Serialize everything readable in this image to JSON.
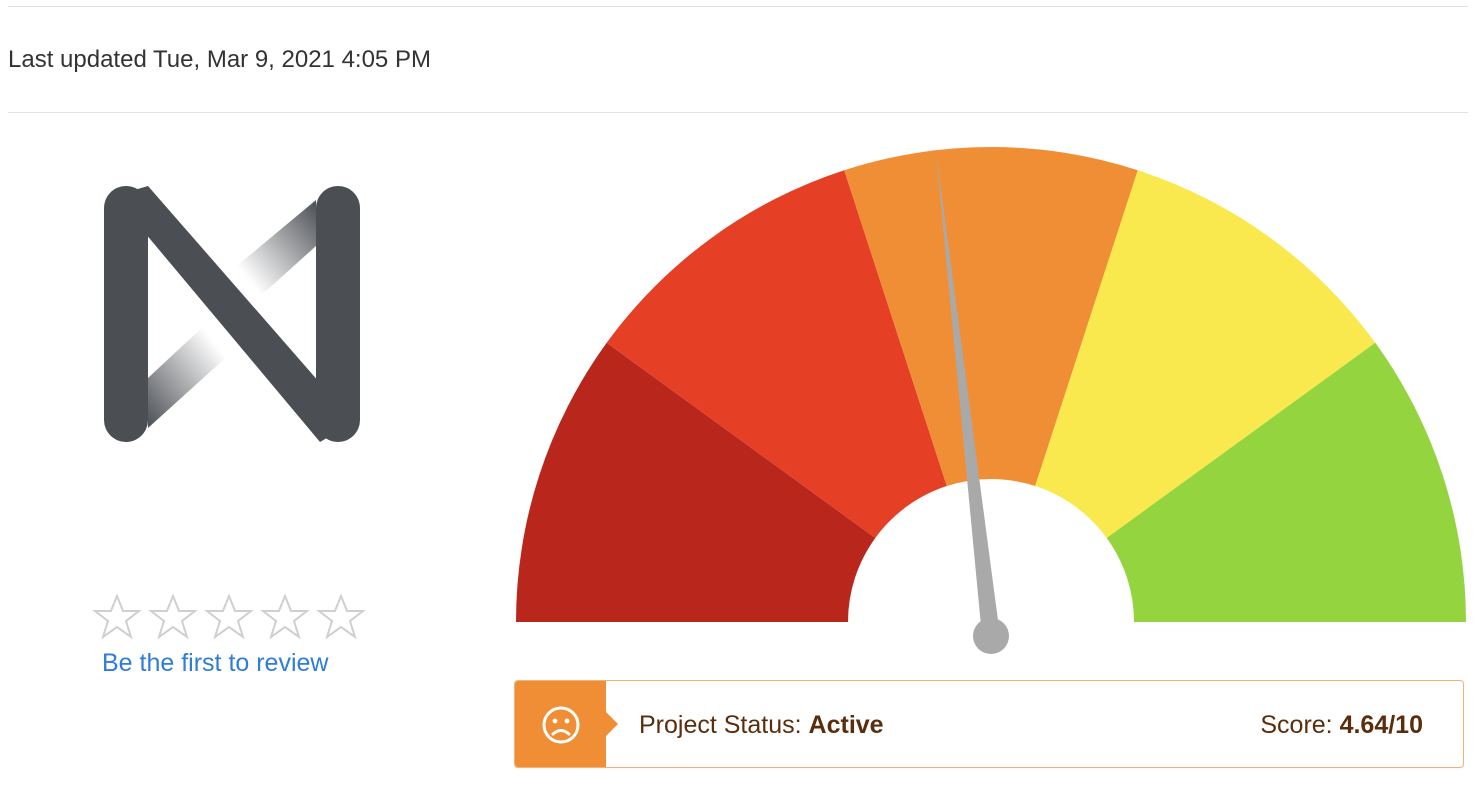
{
  "header": {
    "last_updated": "Last updated Tue, Mar 9, 2021 4:05 PM"
  },
  "logo": {
    "icon": "n-letter-logo",
    "color": "#4b4e53"
  },
  "rating": {
    "stars_total": 5,
    "stars_filled": 0,
    "review_link": "Be the first to review",
    "link_color": "#2f7cd9"
  },
  "gauge": {
    "segments": [
      {
        "color": "#b9271c"
      },
      {
        "color": "#e53f25"
      },
      {
        "color": "#ef8e35"
      },
      {
        "color": "#f9e94e"
      },
      {
        "color": "#93d43f"
      }
    ],
    "needle_color": "#a9a9a9",
    "score": 4.64,
    "max": 10
  },
  "status": {
    "icon": "sad-face-icon",
    "project_status_label": "Project Status:",
    "project_status_value": "Active",
    "score_label": "Score:",
    "score_value": "4.64/10",
    "accent_color": "#ef8e35",
    "text_color": "#5a2e0c"
  }
}
